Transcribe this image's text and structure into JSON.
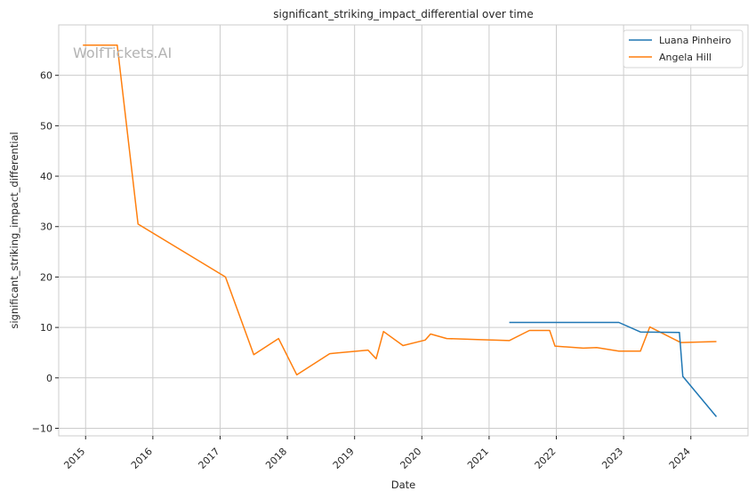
{
  "chart_data": {
    "type": "line",
    "title": "significant_striking_impact_differential over time",
    "xlabel": "Date",
    "ylabel": "significant_striking_impact_differential",
    "watermark": "WolfTickets.AI",
    "xlim": [
      2014.6,
      2024.85
    ],
    "ylim": [
      -11.5,
      70
    ],
    "x_ticks": [
      2015,
      2016,
      2017,
      2018,
      2019,
      2020,
      2021,
      2022,
      2023,
      2024
    ],
    "x_tick_labels": [
      "2015",
      "2016",
      "2017",
      "2018",
      "2019",
      "2020",
      "2021",
      "2022",
      "2023",
      "2024"
    ],
    "y_ticks": [
      -10,
      0,
      10,
      20,
      30,
      40,
      50,
      60
    ],
    "y_tick_labels": [
      "−10",
      "0",
      "10",
      "20",
      "30",
      "40",
      "50",
      "60"
    ],
    "grid": true,
    "legend_position": "top-right",
    "series": [
      {
        "name": "Luana Pinheiro",
        "color": "#1f77b4",
        "x": [
          2021.3,
          2022.93,
          2023.25,
          2023.83,
          2023.88,
          2024.38
        ],
        "y": [
          11.0,
          11.0,
          9.1,
          9.0,
          0.3,
          -7.7
        ]
      },
      {
        "name": "Angela Hill",
        "color": "#ff7f0e",
        "x": [
          2014.96,
          2015.47,
          2015.78,
          2017.08,
          2017.5,
          2017.87,
          2018.14,
          2018.63,
          2019.2,
          2019.32,
          2019.43,
          2019.72,
          2020.05,
          2020.13,
          2020.37,
          2020.83,
          2021.3,
          2021.6,
          2021.9,
          2021.98,
          2022.4,
          2022.6,
          2022.93,
          2023.25,
          2023.39,
          2023.85,
          2024.38
        ],
        "y": [
          66.0,
          66.0,
          30.5,
          20.0,
          4.6,
          7.8,
          0.6,
          4.8,
          5.5,
          3.8,
          9.2,
          6.4,
          7.5,
          8.7,
          7.8,
          7.6,
          7.4,
          9.4,
          9.4,
          6.3,
          5.9,
          6.0,
          5.3,
          5.3,
          10.1,
          7.0,
          7.2
        ]
      }
    ]
  }
}
